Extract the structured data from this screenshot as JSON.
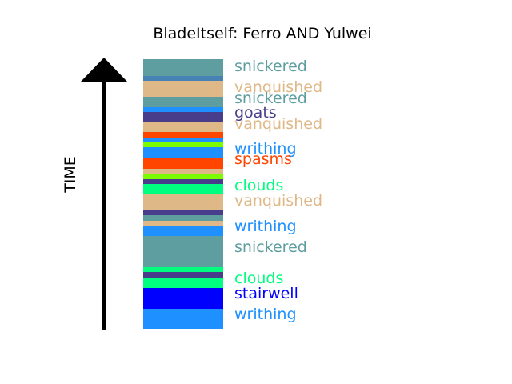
{
  "title": "BladeItself: Ferro AND Yulwei",
  "axis_label": "TIME",
  "colors": {
    "cadetblue": "#5f9ea0",
    "steelblue": "#4682b4",
    "burlywood": "#deb887",
    "dodgerblue": "#1e90ff",
    "darkslateblue": "#483d8b",
    "orangered": "#ff4500",
    "lawngreen": "#7cfc00",
    "springgreen": "#00ff7f",
    "blue": "#0000ff"
  },
  "bands": [
    {
      "color": "cadetblue"
    },
    {
      "color": "steelblue"
    },
    {
      "color": "burlywood"
    },
    {
      "color": "cadetblue"
    },
    {
      "color": "dodgerblue"
    },
    {
      "color": "darkslateblue"
    },
    {
      "color": "burlywood"
    },
    {
      "color": "orangered"
    },
    {
      "color": "dodgerblue"
    },
    {
      "color": "lawngreen"
    },
    {
      "color": "dodgerblue"
    },
    {
      "color": "orangered"
    },
    {
      "color": "burlywood"
    },
    {
      "color": "lawngreen"
    },
    {
      "color": "darkslateblue"
    },
    {
      "color": "springgreen"
    },
    {
      "color": "burlywood"
    },
    {
      "color": "darkslateblue"
    },
    {
      "color": "cadetblue"
    },
    {
      "color": "burlywood"
    },
    {
      "color": "dodgerblue"
    },
    {
      "color": "cadetblue"
    },
    {
      "color": "springgreen"
    },
    {
      "color": "darkslateblue"
    },
    {
      "color": "springgreen"
    },
    {
      "color": "blue"
    },
    {
      "color": "dodgerblue"
    }
  ],
  "labels": [
    {
      "text": "snickered",
      "color": "cadetblue"
    },
    {
      "text": "vanquished",
      "color": "burlywood"
    },
    {
      "text": "snickered",
      "color": "cadetblue"
    },
    {
      "text": "goats",
      "color": "darkslateblue"
    },
    {
      "text": "vanquished",
      "color": "burlywood"
    },
    {
      "text": "writhing",
      "color": "dodgerblue"
    },
    {
      "text": "spasms",
      "color": "orangered"
    },
    {
      "text": "clouds",
      "color": "springgreen"
    },
    {
      "text": "vanquished",
      "color": "burlywood"
    },
    {
      "text": "writhing",
      "color": "dodgerblue"
    },
    {
      "text": "snickered",
      "color": "cadetblue"
    },
    {
      "text": "clouds",
      "color": "springgreen"
    },
    {
      "text": "stairwell",
      "color": "blue"
    },
    {
      "text": "writhing",
      "color": "dodgerblue"
    }
  ]
}
